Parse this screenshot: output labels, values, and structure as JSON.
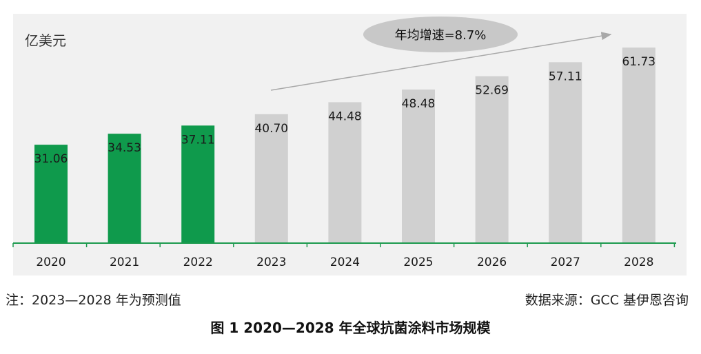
{
  "notes": {
    "forecast_note": "注：2023—2028 年为预测值",
    "source_note": "数据来源：GCC 基伊恩咨询"
  },
  "caption": "图 1 2020—2028 年全球抗菌涂料市场规模",
  "colors": {
    "actual": "#0f9a4c",
    "forecast": "#d0d0d0",
    "panel_bg": "#f1f1f1",
    "axis": "#1c9a4e",
    "annotation_bg": "#c8c8c8",
    "trend_arrow": "#a8a8a8"
  },
  "chart_data": {
    "type": "bar",
    "title": "",
    "xlabel": "",
    "ylabel": "亿美元",
    "categories": [
      "2020",
      "2021",
      "2022",
      "2023",
      "2024",
      "2025",
      "2026",
      "2027",
      "2028"
    ],
    "values": [
      31.06,
      34.53,
      37.11,
      40.7,
      44.48,
      48.48,
      52.69,
      57.11,
      61.73
    ],
    "value_labels": [
      "31.06",
      "34.53",
      "37.11",
      "40.70",
      "44.48",
      "48.48",
      "52.69",
      "57.11",
      "61.73"
    ],
    "actual_years": [
      "2020",
      "2021",
      "2022"
    ],
    "forecast_years": [
      "2023",
      "2024",
      "2025",
      "2026",
      "2027",
      "2028"
    ],
    "annotation": "年均增速=8.7%",
    "ylim": [
      0,
      65
    ],
    "grid": false,
    "legend": "none"
  }
}
